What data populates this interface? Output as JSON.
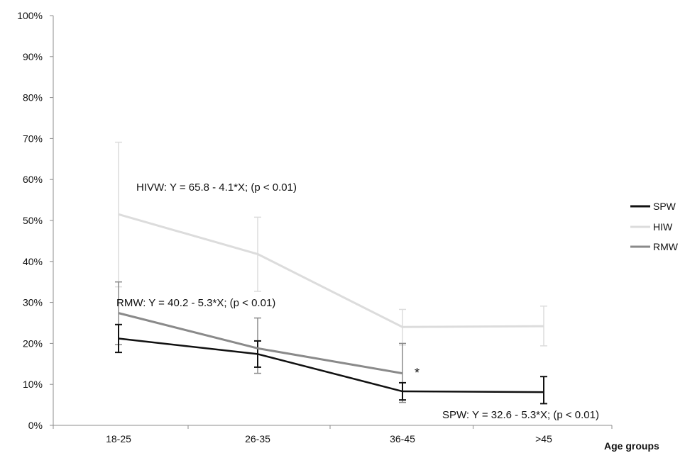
{
  "chart_data": {
    "type": "line",
    "categories": [
      "18-25",
      "26-35",
      "36-45",
      ">45"
    ],
    "xlabel": "Age groups",
    "ylabel": "",
    "ylim": [
      0,
      100
    ],
    "yticks": [
      "0%",
      "10%",
      "20%",
      "30%",
      "40%",
      "50%",
      "60%",
      "70%",
      "80%",
      "90%",
      "100%"
    ],
    "grid": false,
    "legend_position": "right",
    "series": [
      {
        "name": "SPW",
        "color": "#111111",
        "values": [
          21.2,
          17.4,
          8.3,
          8.1
        ],
        "err_low": [
          17.8,
          14.2,
          6.2,
          5.3
        ],
        "err_high": [
          24.6,
          20.6,
          10.4,
          11.9
        ]
      },
      {
        "name": "HIW",
        "color": "#dcdcdc",
        "values": [
          51.5,
          41.8,
          24.0,
          24.2
        ],
        "err_low": [
          33.8,
          32.7,
          19.6,
          19.4
        ],
        "err_high": [
          69.1,
          50.8,
          28.3,
          29.1
        ]
      },
      {
        "name": "RMW",
        "color": "#8a8a8a",
        "values": [
          27.4,
          18.8,
          12.7,
          null
        ],
        "err_low": [
          19.7,
          12.7,
          5.6,
          null
        ],
        "err_high": [
          35.0,
          26.2,
          20.0,
          null
        ]
      }
    ],
    "annotations": [
      {
        "id": "hivw",
        "text": "HIVW: Y = 65.8 - 4.1*X; (p < 0.01)"
      },
      {
        "id": "rmw",
        "text": "RMW: Y = 40.2 - 5.3*X; (p < 0.01)"
      },
      {
        "id": "spw",
        "text": "SPW: Y = 32.6 - 5.3*X; (p < 0.01)"
      },
      {
        "id": "star",
        "text": "*"
      }
    ]
  }
}
